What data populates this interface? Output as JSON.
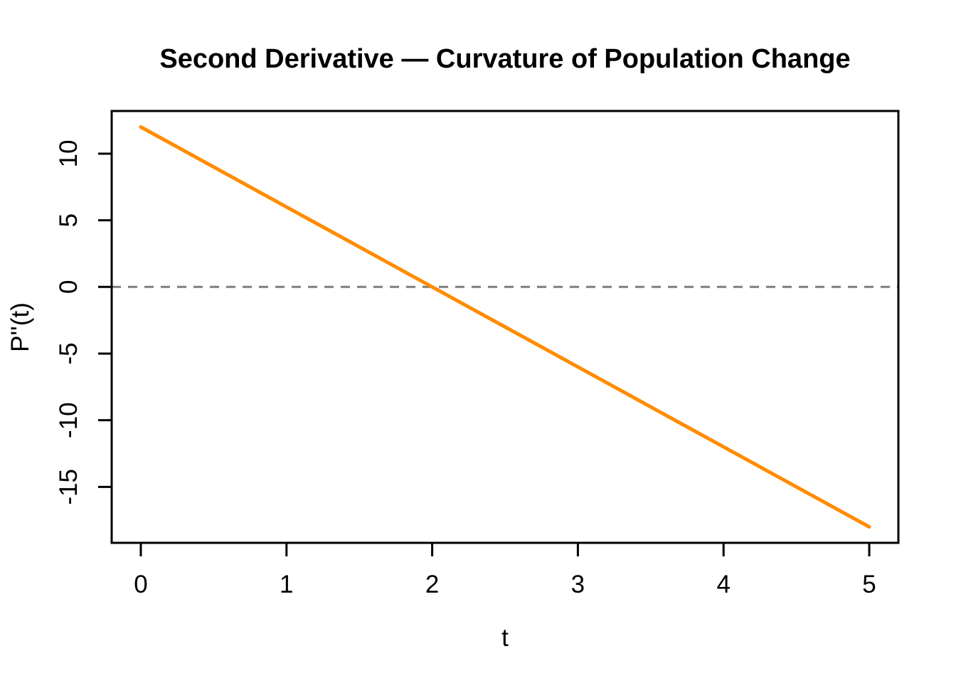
{
  "chart_data": {
    "type": "line",
    "title": "Second Derivative — Curvature of Population Change",
    "xlabel": "t",
    "ylabel": "P''(t)",
    "xlim": [
      0,
      5
    ],
    "ylim": [
      -18,
      12
    ],
    "x_ticks": [
      0,
      1,
      2,
      3,
      4,
      5
    ],
    "y_ticks": [
      -15,
      -10,
      -5,
      0,
      5,
      10
    ],
    "grid": false,
    "legend_position": "none",
    "background_color": "#FFFFFF",
    "text_color": "#000000",
    "axis_color": "#000000",
    "reference_line": {
      "y": 0,
      "style": "dashed",
      "color": "#7F7F7F"
    },
    "series": [
      {
        "name": "P''(t)",
        "color": "#FF8C00",
        "line_width": 5,
        "x": [
          0,
          0.25,
          0.5,
          0.75,
          1,
          1.25,
          1.5,
          1.75,
          2,
          2.25,
          2.5,
          2.75,
          3,
          3.25,
          3.5,
          3.75,
          4,
          4.25,
          4.5,
          4.75,
          5
        ],
        "y": [
          12,
          10.5,
          9,
          7.5,
          6,
          4.5,
          3,
          1.5,
          0,
          -1.5,
          -3,
          -4.5,
          -6,
          -7.5,
          -9,
          -10.5,
          -12,
          -13.5,
          -15,
          -16.5,
          -18
        ]
      }
    ],
    "zero_crossing_t": 2
  }
}
